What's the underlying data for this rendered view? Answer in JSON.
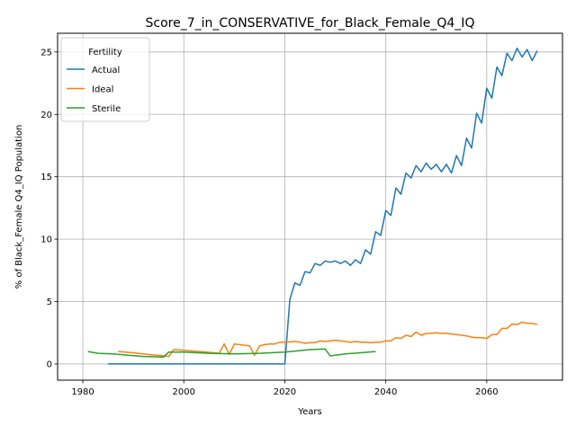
{
  "chart_data": {
    "type": "line",
    "title": "Score_7_in_CONSERVATIVE_for_Black_Female_Q4_IQ",
    "xlabel": "Years",
    "ylabel": "% of Black_Female Q4_IQ Population",
    "xlim": [
      1975,
      2075
    ],
    "ylim": [
      -1.3,
      26.5
    ],
    "xticks": [
      1980,
      2000,
      2020,
      2040,
      2060
    ],
    "yticks": [
      0,
      5,
      10,
      15,
      20,
      25
    ],
    "grid": true,
    "legend": {
      "title": "Fertility",
      "placement": "top-left"
    },
    "series": [
      {
        "name": "Actual",
        "color": "#1f77b4",
        "x": [
          1985,
          1990,
          1995,
          2000,
          2005,
          2010,
          2015,
          2020,
          2021,
          2022,
          2023,
          2024,
          2025,
          2026,
          2027,
          2028,
          2029,
          2030,
          2031,
          2032,
          2033,
          2034,
          2035,
          2036,
          2037,
          2038,
          2039,
          2040,
          2041,
          2042,
          2043,
          2044,
          2045,
          2046,
          2047,
          2048,
          2049,
          2050,
          2051,
          2052,
          2053,
          2054,
          2055,
          2056,
          2057,
          2058,
          2059,
          2060,
          2061,
          2062,
          2063,
          2064,
          2065,
          2066,
          2067,
          2068,
          2069,
          2070
        ],
        "y": [
          0,
          0,
          0,
          0,
          0,
          0,
          0,
          0,
          5.2,
          6.5,
          6.3,
          7.4,
          7.3,
          8.05,
          7.9,
          8.25,
          8.15,
          8.25,
          8.05,
          8.25,
          7.9,
          8.35,
          8.05,
          9.15,
          8.8,
          10.6,
          10.3,
          12.3,
          11.9,
          14.1,
          13.6,
          15.3,
          14.9,
          15.9,
          15.4,
          16.1,
          15.6,
          16.0,
          15.4,
          16.0,
          15.3,
          16.7,
          15.9,
          18.1,
          17.3,
          20.1,
          19.3,
          22.1,
          21.3,
          23.8,
          23.1,
          24.9,
          24.3,
          25.3,
          24.6,
          25.2,
          24.3,
          25.1
        ]
      },
      {
        "name": "Ideal",
        "color": "#ff7f0e",
        "x": [
          1987,
          1990,
          1993,
          1996,
          1997,
          1998,
          2000,
          2003,
          2006,
          2007,
          2008,
          2009,
          2010,
          2012,
          2013,
          2014,
          2015,
          2016,
          2017,
          2018,
          2019,
          2020,
          2022,
          2023,
          2024,
          2025,
          2026,
          2027,
          2028,
          2029,
          2030,
          2031,
          2032,
          2033,
          2034,
          2035,
          2036,
          2037,
          2038,
          2039,
          2040,
          2041,
          2042,
          2043,
          2044,
          2045,
          2046,
          2047,
          2048,
          2049,
          2050,
          2051,
          2052,
          2053,
          2054,
          2055,
          2056,
          2057,
          2058,
          2059,
          2060,
          2061,
          2062,
          2063,
          2064,
          2065,
          2066,
          2067,
          2068,
          2069,
          2070
        ],
        "y": [
          1.0,
          0.9,
          0.75,
          0.65,
          0.6,
          1.15,
          1.1,
          1.0,
          0.9,
          0.85,
          1.6,
          0.75,
          1.6,
          1.5,
          1.45,
          0.7,
          1.45,
          1.55,
          1.6,
          1.6,
          1.75,
          1.75,
          1.8,
          1.75,
          1.65,
          1.7,
          1.7,
          1.85,
          1.8,
          1.85,
          1.9,
          1.85,
          1.8,
          1.75,
          1.8,
          1.75,
          1.75,
          1.7,
          1.75,
          1.75,
          1.85,
          1.85,
          2.1,
          2.05,
          2.3,
          2.2,
          2.55,
          2.3,
          2.45,
          2.45,
          2.5,
          2.45,
          2.45,
          2.4,
          2.35,
          2.3,
          2.25,
          2.15,
          2.1,
          2.1,
          2.05,
          2.35,
          2.35,
          2.85,
          2.85,
          3.2,
          3.15,
          3.35,
          3.25,
          3.25,
          3.15
        ]
      },
      {
        "name": "Sterile",
        "color": "#2ca02c",
        "x": [
          1981,
          1983,
          1986,
          1989,
          1992,
          1996,
          1997,
          2000,
          2005,
          2010,
          2015,
          2020,
          2025,
          2028,
          2029,
          2030,
          2032,
          2035,
          2038
        ],
        "y": [
          1.0,
          0.85,
          0.8,
          0.7,
          0.6,
          0.55,
          0.95,
          0.95,
          0.85,
          0.8,
          0.85,
          0.95,
          1.15,
          1.2,
          0.65,
          0.7,
          0.8,
          0.9,
          1.0
        ]
      }
    ]
  }
}
